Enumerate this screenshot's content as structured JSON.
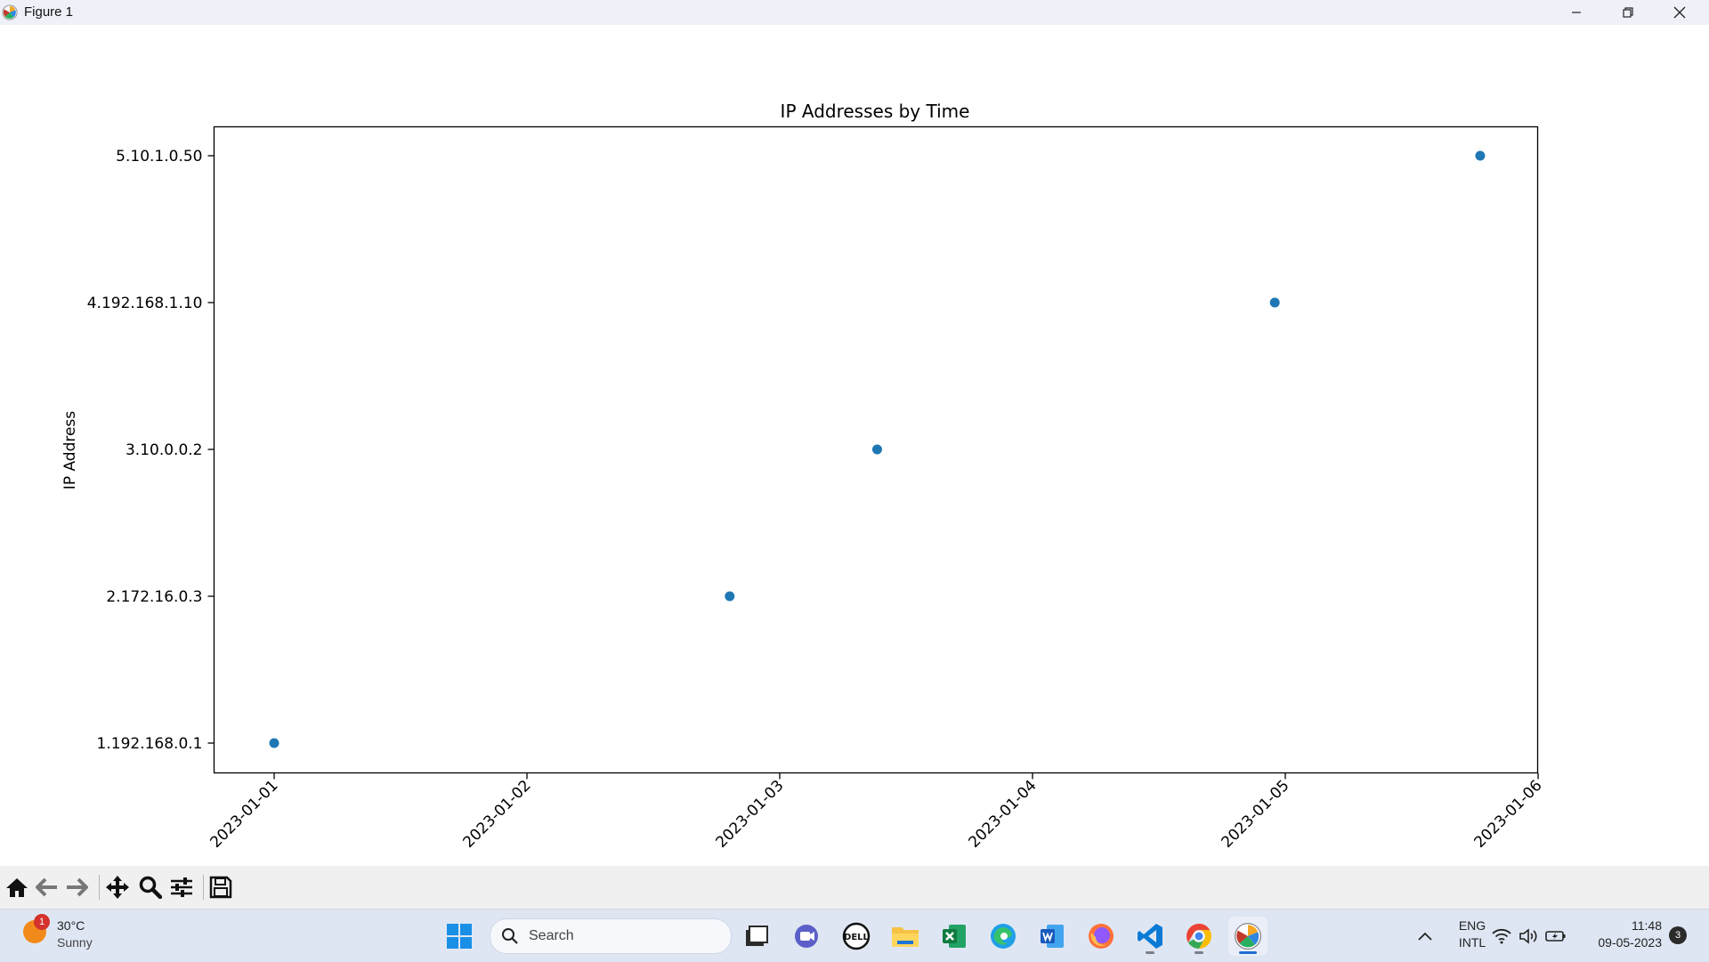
{
  "window": {
    "title": "Figure 1",
    "controls": {
      "minimize": "minimize-icon",
      "restore": "restore-icon",
      "close": "close-icon"
    }
  },
  "chart_data": {
    "type": "scatter",
    "title": "IP Addresses by Time",
    "xlabel": "",
    "ylabel": "IP Address",
    "x_ticks": [
      "2023-01-01",
      "2023-01-02",
      "2023-01-03",
      "2023-01-04",
      "2023-01-05",
      "2023-01-06"
    ],
    "y_ticks": [
      "1.192.168.0.1",
      "2.172.16.0.3",
      "3.10.0.0.2",
      "4.192.168.1.10",
      "5.10.1.0.50"
    ],
    "points": [
      {
        "x": "2023-01-01 00:00",
        "y": "1.192.168.0.1"
      },
      {
        "x": "2023-01-02 19:15",
        "y": "2.172.16.0.3"
      },
      {
        "x": "2023-01-03 09:15",
        "y": "3.10.0.0.2"
      },
      {
        "x": "2023-01-04 23:00",
        "y": "4.192.168.1.10"
      },
      {
        "x": "2023-01-05 18:30",
        "y": "5.10.1.0.50"
      }
    ],
    "marker_color": "#1f77b4",
    "grid": false,
    "legend": "none"
  },
  "toolbar": {
    "tools": [
      "home-icon",
      "back-icon",
      "forward-icon",
      "pan-icon",
      "zoom-icon",
      "configure-subplots-icon",
      "save-icon"
    ]
  },
  "taskbar": {
    "weather": {
      "badge": "1",
      "temp": "30°C",
      "condition": "Sunny"
    },
    "search": {
      "placeholder": "Search"
    },
    "apps": [
      "windows-start-icon",
      "search-icon",
      "task-view-icon",
      "teams-icon",
      "dell-icon",
      "file-explorer-icon",
      "excel-icon",
      "edge-icon",
      "word-icon",
      "firefox-icon",
      "vscode-icon",
      "chrome-icon",
      "matplotlib-icon"
    ],
    "tray": {
      "lang_top": "ENG",
      "lang_bottom": "INTL",
      "time": "11:48",
      "date": "09-05-2023",
      "notifications": "3"
    }
  }
}
